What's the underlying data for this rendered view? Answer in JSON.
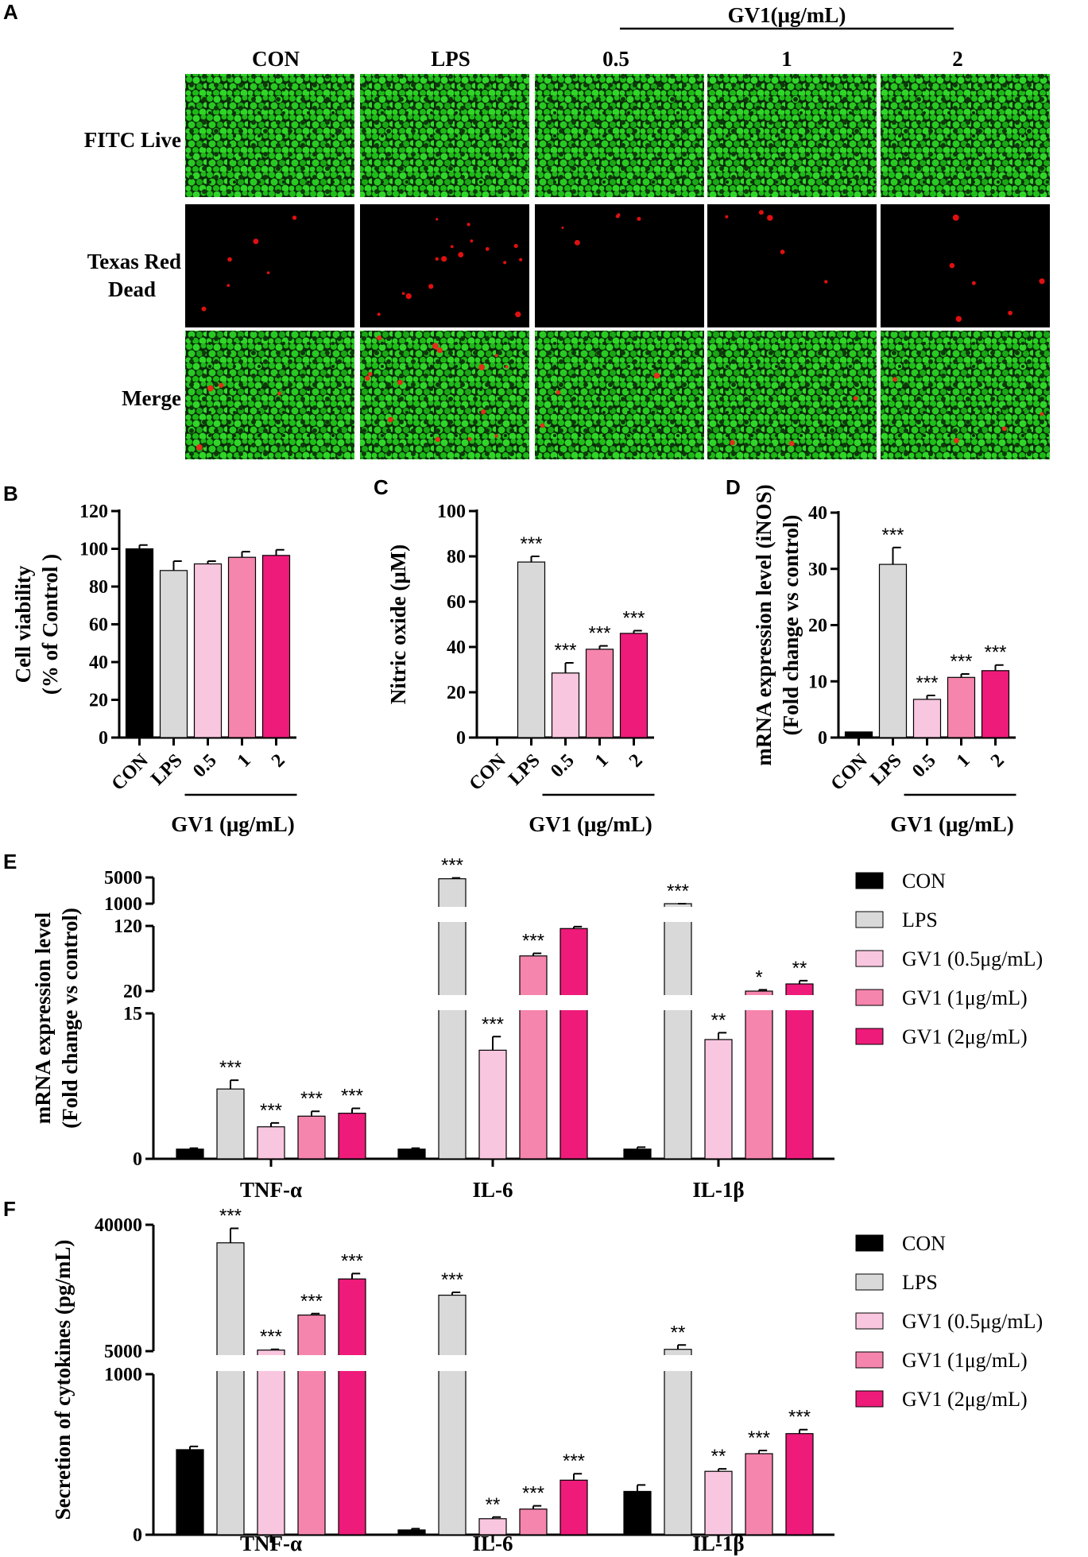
{
  "panel_labels": {
    "A": "A",
    "B": "B",
    "C": "C",
    "D": "D",
    "E": "E",
    "F": "F"
  },
  "panel_a": {
    "group_header": "GV1(μg/mL)",
    "columns": [
      "CON",
      "LPS",
      "0.5",
      "1",
      "2"
    ],
    "rows": [
      "FITC Live",
      "Texas Red Dead",
      "Merge"
    ],
    "row_colors": {
      "live": "#22c41e",
      "dead": "#e01010",
      "background": "#000000"
    }
  },
  "colors": {
    "CON": "#000000",
    "LPS": "#d9d9d9",
    "GV1_0.5": "#f9c6df",
    "GV1_1": "#f685ae",
    "GV1_2": "#ee1b7a"
  },
  "chart_data": [
    {
      "id": "B",
      "type": "bar",
      "ylabel": [
        "Cell viability",
        "(% of Control )"
      ],
      "xlabel": "GV1 (μg/mL)",
      "categories": [
        "CON",
        "LPS",
        "0.5",
        "1",
        "2"
      ],
      "values": [
        100,
        88.5,
        92,
        95.5,
        96.5
      ],
      "errors": [
        2,
        5,
        1.5,
        3,
        3
      ],
      "significance": [
        "",
        "",
        "",
        "",
        ""
      ],
      "yticks": [
        0,
        20,
        40,
        60,
        80,
        100,
        120
      ],
      "ylim": [
        0,
        120
      ]
    },
    {
      "id": "C",
      "type": "bar",
      "ylabel": [
        "Nitric oxide (μM)"
      ],
      "xlabel": "GV1 (μg/mL)",
      "categories": [
        "CON",
        "LPS",
        "0.5",
        "1",
        "2"
      ],
      "values": [
        0,
        77.5,
        28.5,
        39,
        46
      ],
      "errors": [
        0,
        2.5,
        4.5,
        1.5,
        1.2
      ],
      "significance": [
        "",
        "***",
        "***",
        "***",
        "***"
      ],
      "yticks": [
        0,
        20,
        40,
        60,
        80,
        100
      ],
      "ylim": [
        0,
        100
      ]
    },
    {
      "id": "D",
      "type": "bar",
      "ylabel": [
        "mRNA expression level (iNOS)",
        "(Fold change vs control)"
      ],
      "xlabel": "GV1 (μg/mL)",
      "categories": [
        "CON",
        "LPS",
        "0.5",
        "1",
        "2"
      ],
      "values": [
        1,
        30.8,
        6.8,
        10.7,
        11.9
      ],
      "errors": [
        0,
        3,
        0.7,
        0.6,
        1
      ],
      "significance": [
        "",
        "***",
        "***",
        "***",
        "***"
      ],
      "yticks": [
        0,
        10,
        20,
        30,
        40
      ],
      "ylim": [
        0,
        40
      ]
    },
    {
      "id": "E",
      "type": "bar",
      "ylabel": [
        "mRNA expression level",
        "(Fold change vs control)"
      ],
      "groups": [
        "TNF-α",
        "IL-6",
        "IL-1β"
      ],
      "legend": [
        "CON",
        "LPS",
        "GV1 (0.5μg/mL)",
        "GV1 (1μg/mL)",
        "GV1 (2μg/mL)"
      ],
      "series": [
        {
          "name": "CON",
          "values": [
            1,
            1,
            1
          ],
          "errors": [
            0.1,
            0.1,
            0.2
          ],
          "sig": [
            "",
            "",
            ""
          ]
        },
        {
          "name": "LPS",
          "values": [
            7.2,
            4800,
            1000
          ],
          "errors": [
            0.9,
            120,
            20
          ],
          "sig": [
            "***",
            "***",
            "***"
          ]
        },
        {
          "name": "GV1 (0.5μg/mL)",
          "values": [
            3.3,
            11.2,
            12.3
          ],
          "errors": [
            0.4,
            1.4,
            0.7
          ],
          "sig": [
            "***",
            "***",
            "**"
          ]
        },
        {
          "name": "GV1 (1μg/mL)",
          "values": [
            4.4,
            74,
            20
          ],
          "errors": [
            0.5,
            4,
            2
          ],
          "sig": [
            "***",
            "***",
            "*"
          ]
        },
        {
          "name": "GV1 (2μg/mL)",
          "values": [
            4.7,
            116,
            31
          ],
          "errors": [
            0.5,
            3,
            5
          ],
          "sig": [
            "***",
            "***",
            "**"
          ]
        }
      ],
      "yticks": [
        "0",
        "15",
        "20",
        "120",
        "1000",
        "5000"
      ],
      "ylim": [
        0,
        5000
      ],
      "broken_axis": true
    },
    {
      "id": "F",
      "type": "bar",
      "ylabel": [
        "Secretion of cytokines (pg/mL)"
      ],
      "groups": [
        "TNF-α",
        "IL-6",
        "IL-1β"
      ],
      "legend": [
        "CON",
        "LPS",
        "GV1 (0.5μg/mL)",
        "GV1 (1μg/mL)",
        "GV1 (2μg/mL)"
      ],
      "series": [
        {
          "name": "CON",
          "values": [
            530,
            30,
            270
          ],
          "errors": [
            20,
            8,
            40
          ],
          "sig": [
            "",
            "",
            ""
          ]
        },
        {
          "name": "LPS",
          "values": [
            35000,
            20500,
            5500
          ],
          "errors": [
            4000,
            800,
            1200
          ],
          "sig": [
            "***",
            "***",
            "**"
          ]
        },
        {
          "name": "GV1 (0.5μg/mL)",
          "values": [
            5300,
            100,
            395
          ],
          "errors": [
            200,
            10,
            15
          ],
          "sig": [
            "***",
            "**",
            "**"
          ]
        },
        {
          "name": "GV1 (1μg/mL)",
          "values": [
            15000,
            160,
            505
          ],
          "errors": [
            400,
            20,
            20
          ],
          "sig": [
            "***",
            "***",
            "***"
          ]
        },
        {
          "name": "GV1 (2μg/mL)",
          "values": [
            25000,
            340,
            630
          ],
          "errors": [
            1500,
            40,
            25
          ],
          "sig": [
            "***",
            "***",
            "***"
          ]
        }
      ],
      "yticks": [
        "0",
        "1000",
        "5000",
        "40000"
      ],
      "ylim": [
        0,
        40000
      ],
      "broken_axis": true
    }
  ]
}
